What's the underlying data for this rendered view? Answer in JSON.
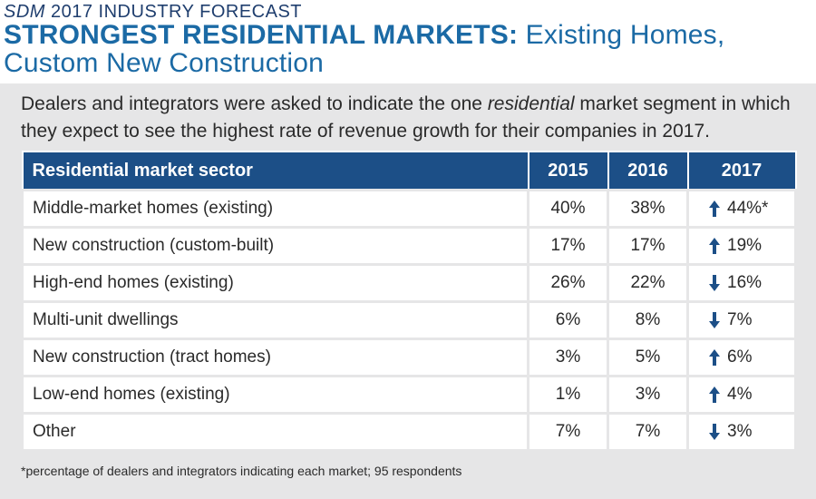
{
  "header": {
    "kicker_italic": "SDM",
    "kicker_rest": " 2017 INDUSTRY FORECAST",
    "title_bold": "STRONGEST RESIDENTIAL MARKETS:",
    "title_rest": " Existing Homes, Custom New Construction"
  },
  "intro": {
    "before": "Dealers and integrators were asked to indicate the one ",
    "italic": "residential",
    "after": " market segment in which they expect to see the highest rate of revenue growth for their companies in 2017."
  },
  "colors": {
    "header_fill": "#1c4f87",
    "title": "#1b6aa5",
    "panel": "#e6e6e7",
    "arrow": "#1c4f87"
  },
  "chart_data": {
    "type": "table",
    "columns": [
      "Residential market sector",
      "2015",
      "2016",
      "2017"
    ],
    "rows": [
      {
        "sector": "Middle-market homes (existing)",
        "y2015": "40%",
        "y2016": "38%",
        "y2017": "44%*",
        "trend": "up"
      },
      {
        "sector": "New construction (custom-built)",
        "y2015": "17%",
        "y2016": "17%",
        "y2017": "19%",
        "trend": "up"
      },
      {
        "sector": "High-end homes (existing)",
        "y2015": "26%",
        "y2016": "22%",
        "y2017": "16%",
        "trend": "down"
      },
      {
        "sector": "Multi-unit dwellings",
        "y2015": "6%",
        "y2016": "8%",
        "y2017": "7%",
        "trend": "down"
      },
      {
        "sector": "New construction (tract homes)",
        "y2015": "3%",
        "y2016": "5%",
        "y2017": "6%",
        "trend": "up"
      },
      {
        "sector": "Low-end homes (existing)",
        "y2015": "1%",
        "y2016": "3%",
        "y2017": "4%",
        "trend": "up"
      },
      {
        "sector": "Other",
        "y2015": "7%",
        "y2016": "7%",
        "y2017": "3%",
        "trend": "down"
      }
    ]
  },
  "footnote": "*percentage of dealers and integrators indicating each market; 95 respondents"
}
